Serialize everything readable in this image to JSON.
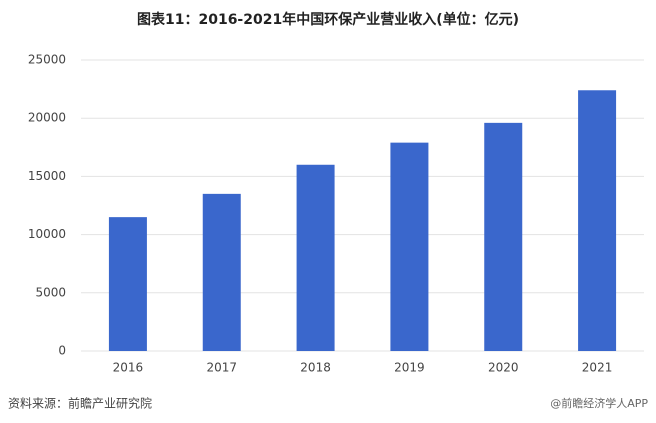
{
  "chart_data": {
    "type": "bar",
    "title": "图表11：2016-2021年中国环保产业营业收入(单位：亿元)",
    "categories": [
      "2016",
      "2017",
      "2018",
      "2019",
      "2020",
      "2021"
    ],
    "values": [
      11500,
      13500,
      16000,
      17900,
      19600,
      22400
    ],
    "color": "#3a67cc",
    "ylim": [
      0,
      25000
    ],
    "yticks": [
      0,
      5000,
      10000,
      15000,
      20000,
      25000
    ],
    "grid": true,
    "source": "资料来源：前瞻产业研究院",
    "watermark": "@前瞻经济学人APP"
  }
}
